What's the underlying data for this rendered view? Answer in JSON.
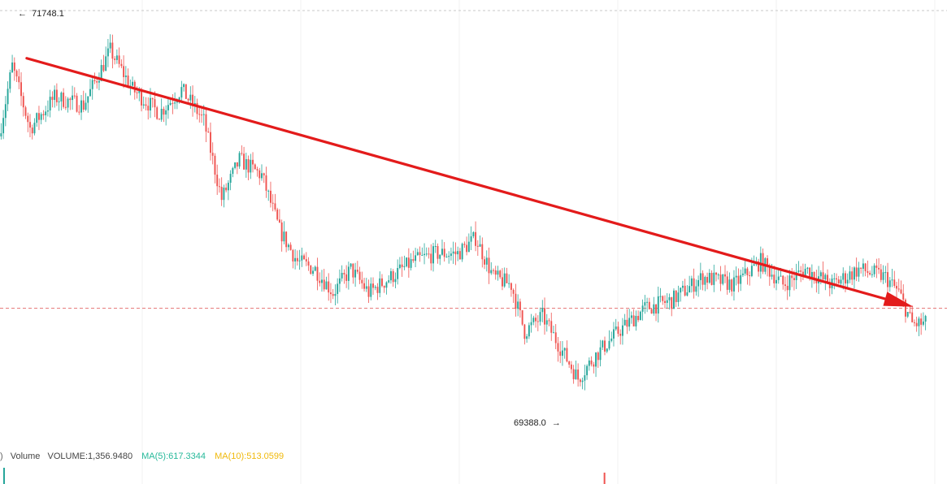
{
  "chart_data": {
    "type": "candlestick",
    "title": "",
    "xlabel": "",
    "ylabel": "",
    "high_label": "71748.1",
    "low_label": "69388.0",
    "high_marker": "←",
    "low_marker": "→",
    "ylim": [
      69200,
      71850
    ],
    "current_price_line": 69950,
    "price_path": [
      {
        "t": 0,
        "p": 71050
      },
      {
        "t": 6,
        "p": 71500
      },
      {
        "t": 14,
        "p": 71100
      },
      {
        "t": 25,
        "p": 71300
      },
      {
        "t": 38,
        "p": 71250
      },
      {
        "t": 50,
        "p": 71600
      },
      {
        "t": 60,
        "p": 71350
      },
      {
        "t": 72,
        "p": 71200
      },
      {
        "t": 82,
        "p": 71350
      },
      {
        "t": 92,
        "p": 71150
      },
      {
        "t": 100,
        "p": 70650
      },
      {
        "t": 108,
        "p": 70900
      },
      {
        "t": 118,
        "p": 70800
      },
      {
        "t": 126,
        "p": 70450
      },
      {
        "t": 134,
        "p": 70250
      },
      {
        "t": 142,
        "p": 70200
      },
      {
        "t": 150,
        "p": 70050
      },
      {
        "t": 158,
        "p": 70200
      },
      {
        "t": 166,
        "p": 70050
      },
      {
        "t": 176,
        "p": 70150
      },
      {
        "t": 186,
        "p": 70250
      },
      {
        "t": 196,
        "p": 70300
      },
      {
        "t": 206,
        "p": 70300
      },
      {
        "t": 214,
        "p": 70400
      },
      {
        "t": 222,
        "p": 70150
      },
      {
        "t": 230,
        "p": 70100
      },
      {
        "t": 236,
        "p": 69800
      },
      {
        "t": 244,
        "p": 69900
      },
      {
        "t": 252,
        "p": 69700
      },
      {
        "t": 260,
        "p": 69500
      },
      {
        "t": 268,
        "p": 69650
      },
      {
        "t": 278,
        "p": 69800
      },
      {
        "t": 290,
        "p": 69950
      },
      {
        "t": 302,
        "p": 70000
      },
      {
        "t": 316,
        "p": 70150
      },
      {
        "t": 330,
        "p": 70100
      },
      {
        "t": 342,
        "p": 70250
      },
      {
        "t": 352,
        "p": 70100
      },
      {
        "t": 362,
        "p": 70200
      },
      {
        "t": 374,
        "p": 70100
      },
      {
        "t": 386,
        "p": 70200
      },
      {
        "t": 398,
        "p": 70150
      },
      {
        "t": 404,
        "p": 70050
      },
      {
        "t": 410,
        "p": 69850
      },
      {
        "t": 416,
        "p": 69850
      }
    ],
    "candle_count": 416,
    "trend_arrow": {
      "start": {
        "t": 12,
        "p": 71550
      },
      "end": {
        "t": 410,
        "p": 69960
      },
      "color": "#e31b1b"
    },
    "indicator": {
      "prefix": ")",
      "name": "Volume",
      "volume": "VOLUME:1,356.9480",
      "ma5": "MA(5):617.3344",
      "ma10": "MA(10):513.0599",
      "ma5_color": "#26b99a",
      "ma10_color": "#f0b90b"
    },
    "colors": {
      "up": "#26a69a",
      "down": "#ef5350",
      "grid": "#f2f2f2",
      "dashed": "#e57373"
    }
  }
}
